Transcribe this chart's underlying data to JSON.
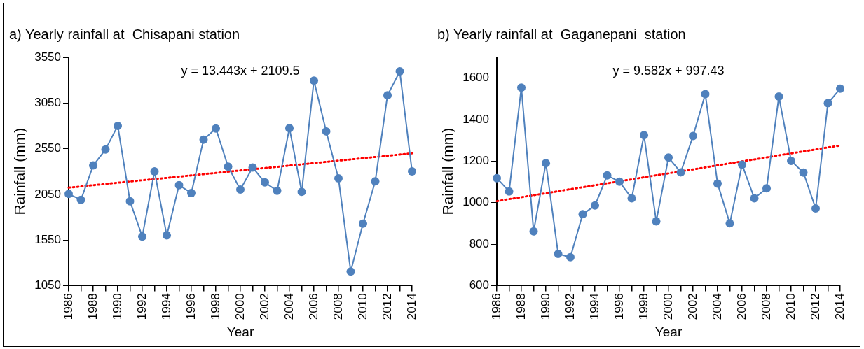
{
  "chart_data": [
    {
      "type": "line",
      "title": "a) Yearly rainfall at  Chisapani station",
      "xlabel": "Year",
      "ylabel": "Rainfall (mm)",
      "x": [
        1986,
        1987,
        1988,
        1989,
        1990,
        1991,
        1992,
        1993,
        1994,
        1995,
        1996,
        1997,
        1998,
        1999,
        2000,
        2001,
        2002,
        2003,
        2004,
        2005,
        2006,
        2007,
        2008,
        2009,
        2010,
        2011,
        2012,
        2013,
        2014
      ],
      "series": [
        {
          "color": "#4f81bd",
          "marker": "circle",
          "values": [
            2054,
            1990,
            2366,
            2540,
            2800,
            1974,
            1588,
            2302,
            1600,
            2151,
            2064,
            2649,
            2771,
            2353,
            2102,
            2344,
            2180,
            2089,
            2775,
            2077,
            3296,
            2739,
            2225,
            1205,
            1729,
            2192,
            3135,
            3396,
            2302
          ]
        },
        {
          "type": "line",
          "color": "#ff0000",
          "line_style": "dotted",
          "marker": "none",
          "values": [
            2123,
            2136,
            2150,
            2163,
            2177,
            2190,
            2204,
            2217,
            2230,
            2244,
            2257,
            2271,
            2284,
            2298,
            2311,
            2325,
            2338,
            2351,
            2365,
            2378,
            2392,
            2405,
            2419,
            2432,
            2446,
            2459,
            2472,
            2486,
            2499
          ]
        }
      ],
      "annotations": [
        "y = 13.443x + 2109.5"
      ],
      "xlim": [
        1986,
        2014
      ],
      "xticks": [
        1986,
        {
          "value": 1987,
          "label": null
        },
        1988,
        {
          "value": 1989,
          "label": null
        },
        1990,
        {
          "value": 1991,
          "label": null
        },
        1992,
        {
          "value": 1993,
          "label": null
        },
        1994,
        {
          "value": 1995,
          "label": null
        },
        1996,
        {
          "value": 1997,
          "label": null
        },
        1998,
        {
          "value": 1999,
          "label": null
        },
        2000,
        {
          "value": 2001,
          "label": null
        },
        2002,
        {
          "value": 2003,
          "label": null
        },
        2004,
        {
          "value": 2005,
          "label": null
        },
        2006,
        {
          "value": 2007,
          "label": null
        },
        2008,
        {
          "value": 2009,
          "label": null
        },
        2010,
        {
          "value": 2011,
          "label": null
        },
        2012,
        {
          "value": 2013,
          "label": null
        },
        2014
      ],
      "ylim": [
        1050,
        3550
      ],
      "yticks": [
        1050,
        1550,
        2050,
        2550,
        3050,
        3550
      ],
      "grid": false,
      "legend": false
    },
    {
      "type": "line",
      "title": "b) Yearly rainfall at  Gaganepani  station",
      "xlabel": "Year",
      "ylabel": "Rainfall (mm)",
      "x": [
        1986,
        1987,
        1988,
        1989,
        1990,
        1991,
        1992,
        1993,
        1994,
        1995,
        1996,
        1997,
        1998,
        1999,
        2000,
        2001,
        2002,
        2003,
        2004,
        2005,
        2006,
        2007,
        2008,
        2009,
        2010,
        2011,
        2012,
        2013,
        2014
      ],
      "series": [
        {
          "color": "#4f81bd",
          "marker": "circle",
          "values": [
            1118,
            1054,
            1554,
            862,
            1190,
            753,
            737,
            944,
            986,
            1131,
            1101,
            1021,
            1325,
            910,
            1217,
            1146,
            1321,
            1523,
            1092,
            900,
            1183,
            1021,
            1069,
            1511,
            1201,
            1145,
            972,
            1479,
            1549
          ]
        },
        {
          "type": "line",
          "color": "#ff0000",
          "line_style": "dotted",
          "marker": "none",
          "values": [
            1007,
            1017,
            1026,
            1036,
            1045,
            1055,
            1065,
            1074,
            1084,
            1093,
            1103,
            1112,
            1122,
            1132,
            1141,
            1151,
            1160,
            1170,
            1180,
            1189,
            1199,
            1208,
            1218,
            1228,
            1237,
            1247,
            1256,
            1266,
            1275
          ]
        }
      ],
      "annotations": [
        "y = 9.582x + 997.43"
      ],
      "xlim": [
        1986,
        2014
      ],
      "xticks": [
        1986,
        {
          "value": 1987,
          "label": null
        },
        1988,
        {
          "value": 1989,
          "label": null
        },
        1990,
        {
          "value": 1991,
          "label": null
        },
        1992,
        {
          "value": 1993,
          "label": null
        },
        1994,
        {
          "value": 1995,
          "label": null
        },
        1996,
        {
          "value": 1997,
          "label": null
        },
        1998,
        {
          "value": 1999,
          "label": null
        },
        2000,
        {
          "value": 2001,
          "label": null
        },
        2002,
        {
          "value": 2003,
          "label": null
        },
        2004,
        {
          "value": 2005,
          "label": null
        },
        2006,
        {
          "value": 2007,
          "label": null
        },
        2008,
        {
          "value": 2009,
          "label": null
        },
        2010,
        {
          "value": 2011,
          "label": null
        },
        2012,
        {
          "value": 2013,
          "label": null
        },
        2014
      ],
      "ylim": [
        600,
        1700
      ],
      "yticks": [
        600,
        800,
        1000,
        1200,
        1400,
        1600
      ],
      "grid": false,
      "legend": false
    }
  ]
}
